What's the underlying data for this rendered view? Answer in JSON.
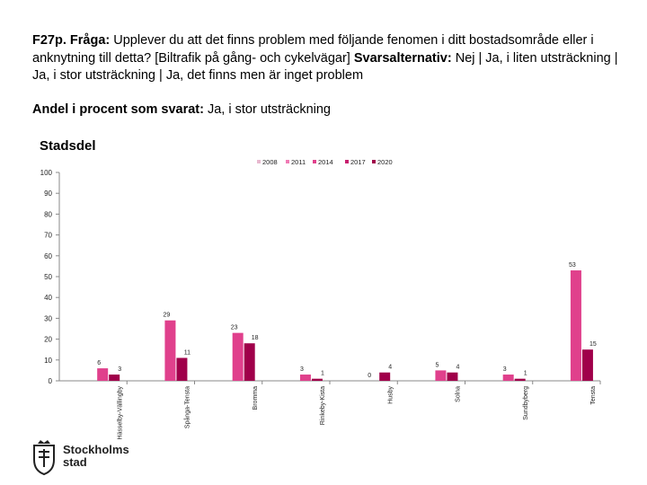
{
  "question": {
    "code_label": "F27p. Fråga:",
    "text": " Upplever du att det finns problem med följande fenomen i ditt bostadsområde eller i anknytning till detta? [Biltrafik på gång- och cykelvägar] ",
    "alt_label": "Svarsalternativ:",
    "alt_text": " Nej | Ja, i liten utsträckning | Ja, i stor utsträckning | Ja, det finns men är inget problem"
  },
  "measure": {
    "label": "Andel i procent som svarat:",
    "text": " Ja, i stor utsträckning"
  },
  "chart_heading": "Stadsdel",
  "logo": {
    "name": "Stockholms stad",
    "line1": "Stockholms",
    "line2": "stad"
  },
  "chart_data": {
    "type": "bar",
    "title": "Stadsdel",
    "ylim": [
      0,
      100
    ],
    "yticks": [
      0,
      10,
      20,
      30,
      40,
      50,
      60,
      70,
      80,
      90,
      100
    ],
    "categories": [
      "Hässelby-Vällingby",
      "Spånga-Tensta",
      "Bromma",
      "Rinkeby-Kista",
      "Husby",
      "Solna",
      "Sundbyberg",
      "Tensta"
    ],
    "category_labels": [
      "Hässelby-Vällingby",
      "Spånga-Tensta",
      "Bromma",
      "Rinkeby-Kista",
      "Husby",
      "Solna",
      "Sundbyberg",
      "Tensta"
    ],
    "series": [
      {
        "name": "2008",
        "color": "#e8b8cf",
        "values": [
          null,
          null,
          null,
          null,
          null,
          null,
          null,
          null
        ]
      },
      {
        "name": "2011",
        "color": "#f07ab4",
        "values": [
          null,
          null,
          null,
          null,
          null,
          null,
          null,
          null
        ]
      },
      {
        "name": "2014",
        "color": "#e0408c",
        "values": [
          6,
          29,
          23,
          3,
          0,
          5,
          3,
          53
        ]
      },
      {
        "name": "2017",
        "color": "#c81e6e",
        "values": [
          null,
          null,
          null,
          null,
          null,
          null,
          null,
          null
        ]
      },
      {
        "name": "2020",
        "color": "#a0004a",
        "values": [
          3,
          11,
          18,
          1,
          4,
          4,
          1,
          15
        ]
      }
    ],
    "legend": [
      "2008",
      "2011",
      "2014",
      "2017",
      "2020"
    ],
    "legend_position": "top-right"
  }
}
